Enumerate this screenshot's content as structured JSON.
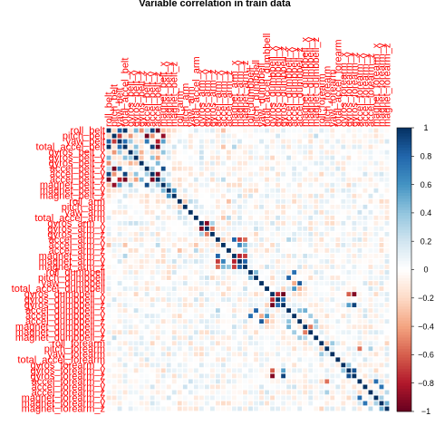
{
  "chart_data": {
    "type": "heatmap",
    "title": "Variable correlation in train data",
    "labels": [
      "roll_belt",
      "pitch_belt",
      "yaw_belt",
      "total_accel_belt",
      "gyros_belt_x",
      "gyros_belt_y",
      "gyros_belt_z",
      "accel_belt_x",
      "accel_belt_y",
      "accel_belt_z",
      "magnet_belt_x",
      "magnet_belt_y",
      "magnet_belt_z",
      "roll_arm",
      "pitch_arm",
      "yaw_arm",
      "total_accel_arm",
      "gyros_arm_x",
      "gyros_arm_y",
      "gyros_arm_z",
      "accel_arm_x",
      "accel_arm_y",
      "accel_arm_z",
      "magnet_arm_x",
      "magnet_arm_y",
      "magnet_arm_z",
      "roll_dumbbell",
      "pitch_dumbbell",
      "yaw_dumbbell",
      "total_accel_dumbbell",
      "gyros_dumbbell_x",
      "gyros_dumbbell_y",
      "gyros_dumbbell_z",
      "accel_dumbbell_x",
      "accel_dumbbell_y",
      "accel_dumbbell_z",
      "magnet_dumbbell_x",
      "magnet_dumbbell_y",
      "magnet_dumbbell_z",
      "roll_forearm",
      "pitch_forearm",
      "yaw_forearm",
      "total_accel_forearm",
      "gyros_forearm_x",
      "gyros_forearm_y",
      "gyros_forearm_z",
      "accel_forearm_x",
      "accel_forearm_y",
      "accel_forearm_z",
      "magnet_forearm_x",
      "magnet_forearm_y",
      "magnet_forearm_z"
    ],
    "strong_pairs": [
      {
        "a": "roll_belt",
        "b": "yaw_belt",
        "r": 0.82
      },
      {
        "a": "roll_belt",
        "b": "total_accel_belt",
        "r": 0.98
      },
      {
        "a": "roll_belt",
        "b": "accel_belt_y",
        "r": 0.92
      },
      {
        "a": "roll_belt",
        "b": "accel_belt_z",
        "r": -0.99
      },
      {
        "a": "roll_belt",
        "b": "magnet_belt_x",
        "r": -0.3
      },
      {
        "a": "roll_belt",
        "b": "magnet_belt_y",
        "r": -0.22
      },
      {
        "a": "roll_belt",
        "b": "magnet_belt_z",
        "r": -0.17
      },
      {
        "a": "roll_belt",
        "b": "pitch_belt",
        "r": -0.22
      },
      {
        "a": "roll_belt",
        "b": "gyros_belt_y",
        "r": 0.46
      },
      {
        "a": "roll_belt",
        "b": "gyros_belt_z",
        "r": -0.46
      },
      {
        "a": "roll_belt",
        "b": "accel_belt_x",
        "r": 0.26
      },
      {
        "a": "pitch_belt",
        "b": "accel_belt_x",
        "r": -0.97
      },
      {
        "a": "pitch_belt",
        "b": "magnet_belt_x",
        "r": -0.88
      },
      {
        "a": "pitch_belt",
        "b": "yaw_belt",
        "r": -0.7
      },
      {
        "a": "pitch_belt",
        "b": "gyros_belt_x",
        "r": -0.44
      },
      {
        "a": "pitch_belt",
        "b": "accel_belt_y",
        "r": -0.45
      },
      {
        "a": "pitch_belt",
        "b": "total_accel_belt",
        "r": -0.14
      },
      {
        "a": "yaw_belt",
        "b": "total_accel_belt",
        "r": 0.76
      },
      {
        "a": "yaw_belt",
        "b": "accel_belt_z",
        "r": -0.78
      },
      {
        "a": "yaw_belt",
        "b": "accel_belt_x",
        "r": 0.71
      },
      {
        "a": "yaw_belt",
        "b": "magnet_belt_x",
        "r": 0.54
      },
      {
        "a": "yaw_belt",
        "b": "gyros_belt_x",
        "r": 0.36
      },
      {
        "a": "total_accel_belt",
        "b": "accel_belt_y",
        "r": 0.93
      },
      {
        "a": "total_accel_belt",
        "b": "accel_belt_z",
        "r": -0.97
      },
      {
        "a": "total_accel_belt",
        "b": "gyros_belt_y",
        "r": 0.41
      },
      {
        "a": "gyros_belt_x",
        "b": "gyros_belt_y",
        "r": 0.34
      },
      {
        "a": "gyros_belt_x",
        "b": "gyros_belt_z",
        "r": -0.35
      },
      {
        "a": "gyros_belt_x",
        "b": "magnet_belt_x",
        "r": 0.4
      },
      {
        "a": "gyros_belt_y",
        "b": "gyros_belt_z",
        "r": -0.27
      },
      {
        "a": "gyros_belt_y",
        "b": "accel_belt_y",
        "r": 0.4
      },
      {
        "a": "gyros_belt_y",
        "b": "accel_belt_z",
        "r": -0.41
      },
      {
        "a": "gyros_belt_z",
        "b": "accel_belt_z",
        "r": 0.44
      },
      {
        "a": "accel_belt_x",
        "b": "magnet_belt_x",
        "r": 0.89
      },
      {
        "a": "accel_belt_x",
        "b": "accel_belt_y",
        "r": 0.34
      },
      {
        "a": "accel_belt_y",
        "b": "accel_belt_z",
        "r": -0.93
      },
      {
        "a": "accel_belt_z",
        "b": "magnet_belt_x",
        "r": 0.38
      },
      {
        "a": "magnet_belt_y",
        "b": "magnet_belt_z",
        "r": 0.6
      },
      {
        "a": "magnet_belt_x",
        "b": "magnet_belt_y",
        "r": 0.45
      },
      {
        "a": "total_accel_belt",
        "b": "magnet_arm_x",
        "r": 0.3
      },
      {
        "a": "total_accel_arm",
        "b": "accel_arm_y",
        "r": -0.27
      },
      {
        "a": "total_accel_arm",
        "b": "accel_arm_z",
        "r": 0.28
      },
      {
        "a": "gyros_arm_x",
        "b": "gyros_arm_y",
        "r": -0.92
      },
      {
        "a": "gyros_arm_y",
        "b": "gyros_arm_z",
        "r": -0.52
      },
      {
        "a": "gyros_arm_x",
        "b": "gyros_arm_z",
        "r": 0.33
      },
      {
        "a": "accel_arm_x",
        "b": "magnet_arm_x",
        "r": 0.81
      },
      {
        "a": "accel_arm_x",
        "b": "accel_arm_y",
        "r": -0.24
      },
      {
        "a": "accel_arm_x",
        "b": "magnet_arm_y",
        "r": -0.7
      },
      {
        "a": "accel_arm_x",
        "b": "magnet_arm_z",
        "r": -0.56
      },
      {
        "a": "accel_arm_y",
        "b": "magnet_arm_y",
        "r": 0.67
      },
      {
        "a": "accel_arm_y",
        "b": "magnet_arm_z",
        "r": 0.45
      },
      {
        "a": "accel_arm_z",
        "b": "magnet_arm_z",
        "r": 0.4
      },
      {
        "a": "magnet_arm_x",
        "b": "magnet_arm_y",
        "r": -0.78
      },
      {
        "a": "magnet_arm_x",
        "b": "magnet_arm_z",
        "r": -0.7
      },
      {
        "a": "magnet_arm_y",
        "b": "magnet_arm_z",
        "r": 0.81
      },
      {
        "a": "roll_arm",
        "b": "pitch_arm",
        "r": -0.25
      },
      {
        "a": "roll_arm",
        "b": "yaw_arm",
        "r": 0.27
      },
      {
        "a": "roll_arm",
        "b": "accel_arm_z",
        "r": -0.3
      },
      {
        "a": "roll_dumbbell",
        "b": "pitch_dumbbell",
        "r": 0.44
      },
      {
        "a": "roll_dumbbell",
        "b": "accel_dumbbell_y",
        "r": 0.76
      },
      {
        "a": "pitch_dumbbell",
        "b": "accel_dumbbell_x",
        "r": 0.81
      },
      {
        "a": "yaw_dumbbell",
        "b": "accel_dumbbell_z",
        "r": 0.85
      },
      {
        "a": "yaw_dumbbell",
        "b": "accel_dumbbell_y",
        "r": -0.37
      },
      {
        "a": "total_accel_dumbbell",
        "b": "accel_dumbbell_y",
        "r": 0.58
      },
      {
        "a": "total_accel_dumbbell",
        "b": "accel_dumbbell_z",
        "r": -0.34
      },
      {
        "a": "gyros_dumbbell_x",
        "b": "gyros_dumbbell_z",
        "r": -0.98
      },
      {
        "a": "gyros_dumbbell_x",
        "b": "gyros_dumbbell_y",
        "r": -0.75
      },
      {
        "a": "gyros_dumbbell_y",
        "b": "gyros_dumbbell_z",
        "r": 0.76
      },
      {
        "a": "gyros_dumbbell_x",
        "b": "gyros_forearm_z",
        "r": -0.92
      },
      {
        "a": "gyros_dumbbell_z",
        "b": "gyros_forearm_z",
        "r": 0.93
      },
      {
        "a": "gyros_dumbbell_x",
        "b": "gyros_forearm_y",
        "r": -0.6
      },
      {
        "a": "gyros_dumbbell_z",
        "b": "gyros_forearm_y",
        "r": 0.55
      },
      {
        "a": "accel_dumbbell_x",
        "b": "magnet_dumbbell_x",
        "r": 0.48
      },
      {
        "a": "accel_dumbbell_x",
        "b": "accel_dumbbell_z",
        "r": 0.41
      },
      {
        "a": "accel_dumbbell_y",
        "b": "magnet_dumbbell_y",
        "r": 0.35
      },
      {
        "a": "accel_dumbbell_z",
        "b": "magnet_dumbbell_z",
        "r": 0.36
      },
      {
        "a": "magnet_dumbbell_x",
        "b": "magnet_dumbbell_y",
        "r": -0.52
      },
      {
        "a": "magnet_dumbbell_x",
        "b": "magnet_dumbbell_z",
        "r": 0.28
      },
      {
        "a": "roll_forearm",
        "b": "pitch_forearm",
        "r": -0.24
      },
      {
        "a": "roll_forearm",
        "b": "yaw_forearm",
        "r": 0.37
      },
      {
        "a": "pitch_forearm",
        "b": "accel_forearm_x",
        "r": -0.55
      },
      {
        "a": "pitch_forearm",
        "b": "accel_forearm_z",
        "r": 0.33
      },
      {
        "a": "gyros_forearm_x",
        "b": "gyros_forearm_y",
        "r": 0.38
      },
      {
        "a": "gyros_forearm_y",
        "b": "gyros_forearm_z",
        "r": 0.87
      },
      {
        "a": "accel_forearm_x",
        "b": "magnet_forearm_x",
        "r": 0.77
      },
      {
        "a": "accel_forearm_x",
        "b": "accel_forearm_z",
        "r": -0.21
      },
      {
        "a": "accel_forearm_y",
        "b": "magnet_forearm_y",
        "r": 0.73
      },
      {
        "a": "accel_forearm_z",
        "b": "magnet_forearm_z",
        "r": 0.27
      },
      {
        "a": "magnet_forearm_x",
        "b": "magnet_forearm_y",
        "r": 0.33
      },
      {
        "a": "magnet_forearm_y",
        "b": "magnet_forearm_z",
        "r": 0.48
      },
      {
        "a": "accel_arm_x",
        "b": "accel_dumbbell_x",
        "r": 0.3
      },
      {
        "a": "magnet_arm_x",
        "b": "magnet_dumbbell_x",
        "r": 0.22
      },
      {
        "a": "roll_belt",
        "b": "accel_arm_y",
        "r": -0.3
      },
      {
        "a": "accel_belt_z",
        "b": "accel_arm_y",
        "r": 0.27
      },
      {
        "a": "total_accel_belt",
        "b": "accel_arm_y",
        "r": -0.28
      },
      {
        "a": "magnet_belt_z",
        "b": "magnet_arm_y",
        "r": 0.22
      },
      {
        "a": "pitch_belt",
        "b": "magnet_dumbbell_z",
        "r": 0.25
      }
    ],
    "color_scale": {
      "min": -1,
      "max": 1,
      "ticks": [
        1,
        0.8,
        0.6,
        0.4,
        0.2,
        0,
        -0.2,
        -0.4,
        -0.6,
        -0.8,
        -1
      ],
      "tick_labels": [
        "1",
        "0.8",
        "0.6",
        "0.4",
        "0.2",
        "0",
        "−0.2",
        "−0.4",
        "−0.6",
        "−0.8",
        "−1"
      ],
      "stops": [
        "#67001F",
        "#B2182B",
        "#D6604D",
        "#F4A582",
        "#FDDBC7",
        "#FFFFFF",
        "#D1E5F0",
        "#92C5DE",
        "#4393C3",
        "#2166AC",
        "#053061"
      ]
    },
    "label_color": "#FF0000",
    "background_color": "#FFFFFF",
    "gridlines": true
  }
}
